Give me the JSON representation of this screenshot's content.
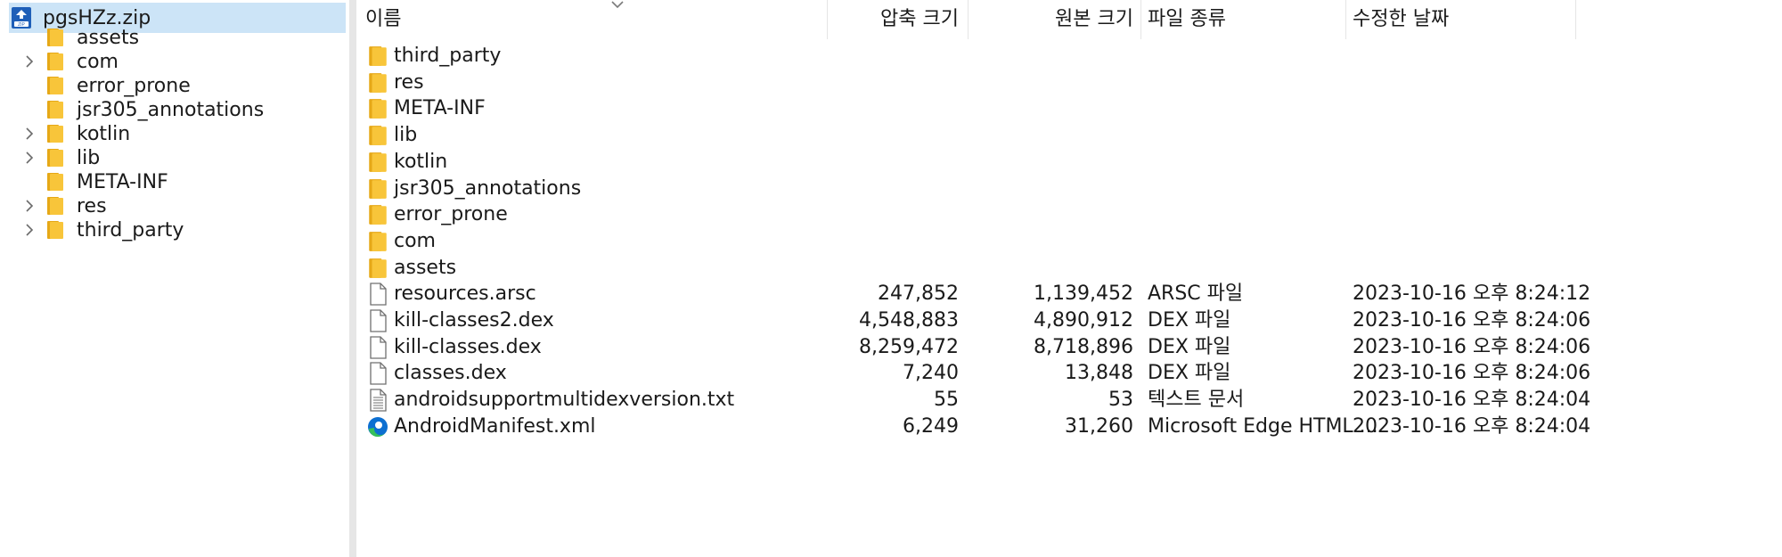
{
  "nav": {
    "root": {
      "label": "pgsHZz.zip",
      "icon": "zip-archive-icon"
    },
    "items": [
      {
        "label": "assets",
        "expandable": false
      },
      {
        "label": "com",
        "expandable": true
      },
      {
        "label": "error_prone",
        "expandable": false
      },
      {
        "label": "jsr305_annotations",
        "expandable": false
      },
      {
        "label": "kotlin",
        "expandable": true
      },
      {
        "label": "lib",
        "expandable": true
      },
      {
        "label": "META-INF",
        "expandable": false
      },
      {
        "label": "res",
        "expandable": true
      },
      {
        "label": "third_party",
        "expandable": true
      }
    ]
  },
  "list": {
    "columns": {
      "name": "이름",
      "packed": "압축 크기",
      "original": "원본 크기",
      "type": "파일 종류",
      "modified": "수정한 날짜"
    },
    "rows": [
      {
        "icon": "folder-icon",
        "name": "third_party",
        "packed": "",
        "original": "",
        "type": "",
        "modified": ""
      },
      {
        "icon": "folder-icon",
        "name": "res",
        "packed": "",
        "original": "",
        "type": "",
        "modified": ""
      },
      {
        "icon": "folder-icon",
        "name": "META-INF",
        "packed": "",
        "original": "",
        "type": "",
        "modified": ""
      },
      {
        "icon": "folder-icon",
        "name": "lib",
        "packed": "",
        "original": "",
        "type": "",
        "modified": ""
      },
      {
        "icon": "folder-icon",
        "name": "kotlin",
        "packed": "",
        "original": "",
        "type": "",
        "modified": ""
      },
      {
        "icon": "folder-icon",
        "name": "jsr305_annotations",
        "packed": "",
        "original": "",
        "type": "",
        "modified": ""
      },
      {
        "icon": "folder-icon",
        "name": "error_prone",
        "packed": "",
        "original": "",
        "type": "",
        "modified": ""
      },
      {
        "icon": "folder-icon",
        "name": "com",
        "packed": "",
        "original": "",
        "type": "",
        "modified": ""
      },
      {
        "icon": "folder-icon",
        "name": "assets",
        "packed": "",
        "original": "",
        "type": "",
        "modified": ""
      },
      {
        "icon": "file-icon",
        "name": "resources.arsc",
        "packed": "247,852",
        "original": "1,139,452",
        "type": "ARSC 파일",
        "modified": "2023-10-16 오후 8:24:12"
      },
      {
        "icon": "file-icon",
        "name": "kill-classes2.dex",
        "packed": "4,548,883",
        "original": "4,890,912",
        "type": "DEX 파일",
        "modified": "2023-10-16 오후 8:24:06"
      },
      {
        "icon": "file-icon",
        "name": "kill-classes.dex",
        "packed": "8,259,472",
        "original": "8,718,896",
        "type": "DEX 파일",
        "modified": "2023-10-16 오후 8:24:06"
      },
      {
        "icon": "file-icon",
        "name": "classes.dex",
        "packed": "7,240",
        "original": "13,848",
        "type": "DEX 파일",
        "modified": "2023-10-16 오후 8:24:06"
      },
      {
        "icon": "text-file-icon",
        "name": "androidsupportmultidexversion.txt",
        "packed": "55",
        "original": "53",
        "type": "텍스트 문서",
        "modified": "2023-10-16 오후 8:24:04"
      },
      {
        "icon": "edge-icon",
        "name": "AndroidManifest.xml",
        "packed": "6,249",
        "original": "31,260",
        "type": "Microsoft Edge HTML ...",
        "modified": "2023-10-16 오후 8:24:04"
      }
    ]
  },
  "colors": {
    "selection": "#cce4f7",
    "folder": "#f8c53a",
    "folder_dark": "#e6a817",
    "edge_blue": "#0c6fd1",
    "edge_green": "#35c05a"
  }
}
